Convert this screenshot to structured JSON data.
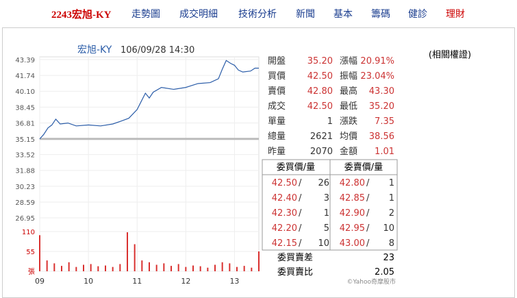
{
  "nav": {
    "items": [
      "2243宏旭-KY",
      "走勢圖",
      "成交明細",
      "技術分析",
      "新聞",
      "基本",
      "籌碼",
      "健診",
      "理財"
    ]
  },
  "chart_data": {
    "type": "line",
    "title": "宏旭-KY",
    "subtitle": "106/09/28 14:30",
    "color": "#2a5ca8",
    "grid": true,
    "xlim": [
      9,
      13.5
    ],
    "xticks": [
      {
        "value": 9,
        "label": "09"
      },
      10,
      11,
      12,
      13
    ],
    "ylim": [
      26.95,
      43.39
    ],
    "yticks": [
      {
        "value": 43.39,
        "label": "43.39"
      },
      {
        "value": 41.74,
        "label": "41.74"
      },
      {
        "value": 40.1,
        "label": "40.10"
      },
      {
        "value": 38.45,
        "label": "38.45"
      },
      {
        "value": 36.81,
        "label": "36.81"
      },
      {
        "value": 35.15,
        "label": "35.15"
      },
      {
        "value": 33.52,
        "label": "33.52"
      },
      {
        "value": 31.88,
        "label": "31.88"
      },
      {
        "value": 30.23,
        "label": "30.23"
      },
      {
        "value": 28.59,
        "label": "28.59"
      },
      {
        "value": 26.95,
        "label": "26.95"
      }
    ],
    "reference": 35.15,
    "x": [
      9,
      9.08,
      9.17,
      9.25,
      9.33,
      9.42,
      9.58,
      9.75,
      10,
      10.25,
      10.5,
      10.67,
      10.83,
      11,
      11.08,
      11.17,
      11.25,
      11.33,
      11.5,
      11.75,
      12,
      12.25,
      12.5,
      12.67,
      12.75,
      12.83,
      12.92,
      13,
      13.08,
      13.17,
      13.33,
      13.42,
      13.5
    ],
    "values": [
      35.15,
      35.6,
      36.3,
      36.6,
      37.2,
      36.7,
      36.8,
      36.5,
      36.6,
      36.5,
      36.7,
      37,
      37.3,
      38.2,
      39,
      39.9,
      39.4,
      40,
      40.5,
      40.3,
      40.5,
      40.9,
      41,
      41.4,
      42.4,
      43.3,
      43,
      42.8,
      42.3,
      42.1,
      42.2,
      42.5,
      42.5
    ],
    "volume": {
      "color": "#d9302f",
      "ylim": [
        0,
        110
      ],
      "yticks": [
        110,
        55,
        {
          "value": 0,
          "label": "張"
        }
      ],
      "x": [
        9,
        9.15,
        9.3,
        9.45,
        9.6,
        9.75,
        9.9,
        10.05,
        10.2,
        10.35,
        10.5,
        10.65,
        10.8,
        10.95,
        11.1,
        11.25,
        11.4,
        11.55,
        11.7,
        11.85,
        12,
        12.15,
        12.3,
        12.45,
        12.6,
        12.75,
        12.9,
        13.05,
        13.2,
        13.35,
        13.5
      ],
      "values": [
        100,
        30,
        22,
        15,
        25,
        12,
        18,
        20,
        14,
        16,
        12,
        20,
        108,
        75,
        30,
        25,
        18,
        22,
        15,
        20,
        12,
        16,
        14,
        10,
        18,
        25,
        22,
        12,
        15,
        10,
        55
      ]
    }
  },
  "quote": {
    "rows": [
      [
        "開盤",
        "35.20",
        "漲幅",
        "20.91%"
      ],
      [
        "買價",
        "42.50",
        "振幅",
        "23.04%"
      ],
      [
        "賣價",
        "42.80",
        "最高",
        "43.30"
      ],
      [
        "成交",
        "42.50",
        "最低",
        "35.20"
      ],
      [
        "單量",
        "1",
        "漲跌",
        "7.35"
      ],
      [
        "總量",
        "2621",
        "均價",
        "38.56"
      ],
      [
        "昨量",
        "2070",
        "金額",
        "1.01"
      ]
    ]
  },
  "order_book": {
    "headers": [
      "委買價/量",
      "委賣價/量"
    ],
    "rows": [
      [
        "42.50",
        "26",
        "42.80",
        "1"
      ],
      [
        "42.40",
        "3",
        "42.85",
        "1"
      ],
      [
        "42.30",
        "1",
        "42.90",
        "2"
      ],
      [
        "42.20",
        "5",
        "42.95",
        "10"
      ],
      [
        "42.15",
        "10",
        "43.00",
        "8"
      ]
    ],
    "summary": [
      [
        "委買賣差",
        "23"
      ],
      [
        "委買賣比",
        "2.05"
      ]
    ]
  },
  "credit": "©Yahoo奇摩股市",
  "related": "(相關權證)"
}
